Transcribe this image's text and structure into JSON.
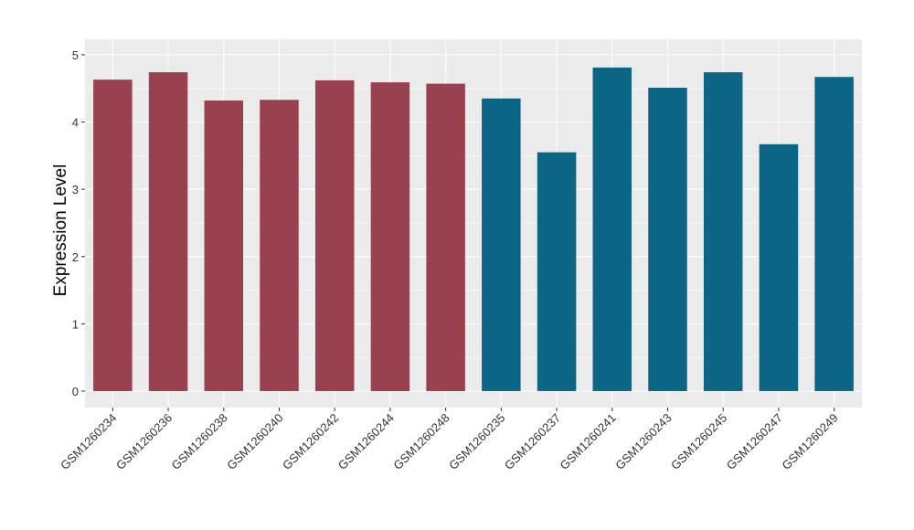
{
  "chart_data": {
    "type": "bar",
    "title": "",
    "xlabel": "",
    "ylabel": "Expression Level",
    "ylim": [
      -0.245,
      5.23
    ],
    "yticks": [
      0,
      1,
      2,
      3,
      4,
      5
    ],
    "grid": true,
    "categories": [
      "GSM1260234",
      "GSM1260236",
      "GSM1260238",
      "GSM1260240",
      "GSM1260242",
      "GSM1260244",
      "GSM1260248",
      "GSM1260235",
      "GSM1260237",
      "GSM1260241",
      "GSM1260243",
      "GSM1260245",
      "GSM1260247",
      "GSM1260249"
    ],
    "values": [
      4.63,
      4.74,
      4.32,
      4.33,
      4.62,
      4.59,
      4.57,
      4.35,
      3.55,
      4.81,
      4.51,
      4.74,
      3.67,
      4.67
    ],
    "groups": [
      0,
      0,
      0,
      0,
      0,
      0,
      0,
      1,
      1,
      1,
      1,
      1,
      1,
      1
    ],
    "group_colors": [
      "#9a4150",
      "#0b6685"
    ]
  }
}
